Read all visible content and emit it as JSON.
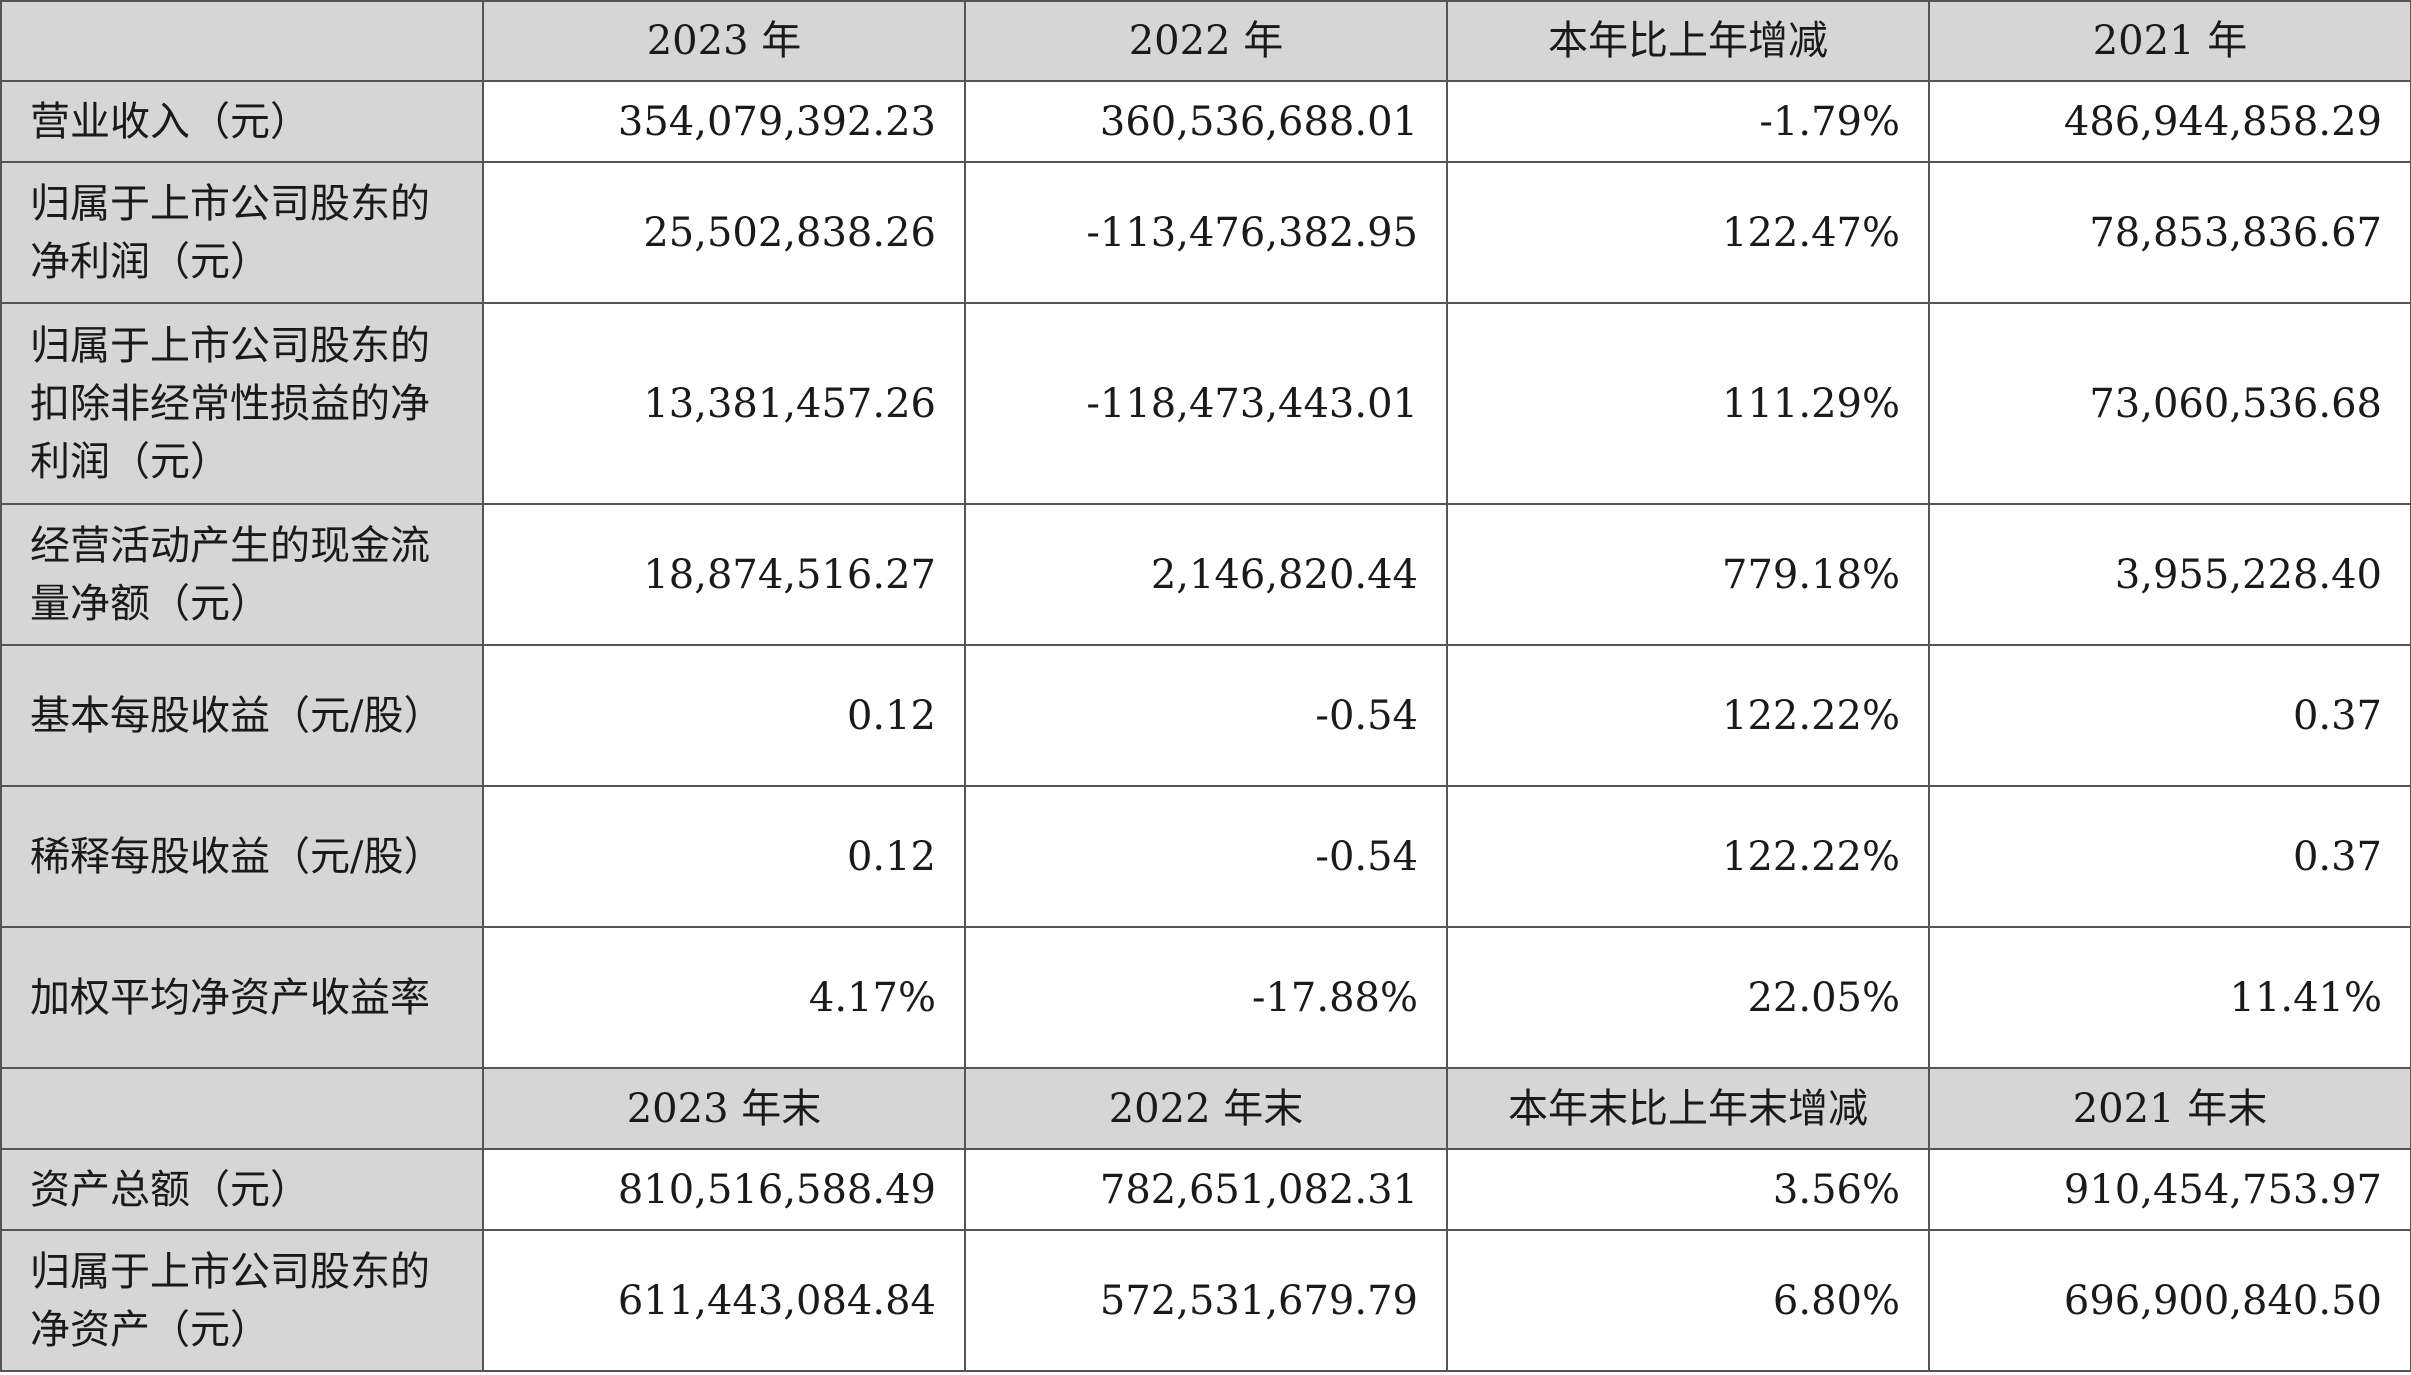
{
  "header1": [
    "",
    "2023 年",
    "2022 年",
    "本年比上年增减",
    "2021 年"
  ],
  "section1": [
    {
      "label": "营业收入（元）",
      "values": [
        "354,079,392.23",
        "360,536,688.01",
        "-1.79%",
        "486,944,858.29"
      ]
    },
    {
      "label": "归属于上市公司股东的净利润（元）",
      "values": [
        "25,502,838.26",
        "-113,476,382.95",
        "122.47%",
        "78,853,836.67"
      ]
    },
    {
      "label": "归属于上市公司股东的扣除非经常性损益的净利润（元）",
      "values": [
        "13,381,457.26",
        "-118,473,443.01",
        "111.29%",
        "73,060,536.68"
      ]
    },
    {
      "label": "经营活动产生的现金流量净额（元）",
      "values": [
        "18,874,516.27",
        "2,146,820.44",
        "779.18%",
        "3,955,228.40"
      ]
    },
    {
      "label": "基本每股收益（元/股）",
      "values": [
        "0.12",
        "-0.54",
        "122.22%",
        "0.37"
      ]
    },
    {
      "label": "稀释每股收益（元/股）",
      "values": [
        "0.12",
        "-0.54",
        "122.22%",
        "0.37"
      ]
    },
    {
      "label": "加权平均净资产收益率",
      "values": [
        "4.17%",
        "-17.88%",
        "22.05%",
        "11.41%"
      ]
    }
  ],
  "header2": [
    "",
    "2023 年末",
    "2022 年末",
    "本年末比上年末增减",
    "2021 年末"
  ],
  "section2": [
    {
      "label": "资产总额（元）",
      "values": [
        "810,516,588.49",
        "782,651,082.31",
        "3.56%",
        "910,454,753.97"
      ]
    },
    {
      "label": "归属于上市公司股东的净资产（元）",
      "values": [
        "611,443,084.84",
        "572,531,679.79",
        "6.80%",
        "696,900,840.50"
      ]
    }
  ]
}
